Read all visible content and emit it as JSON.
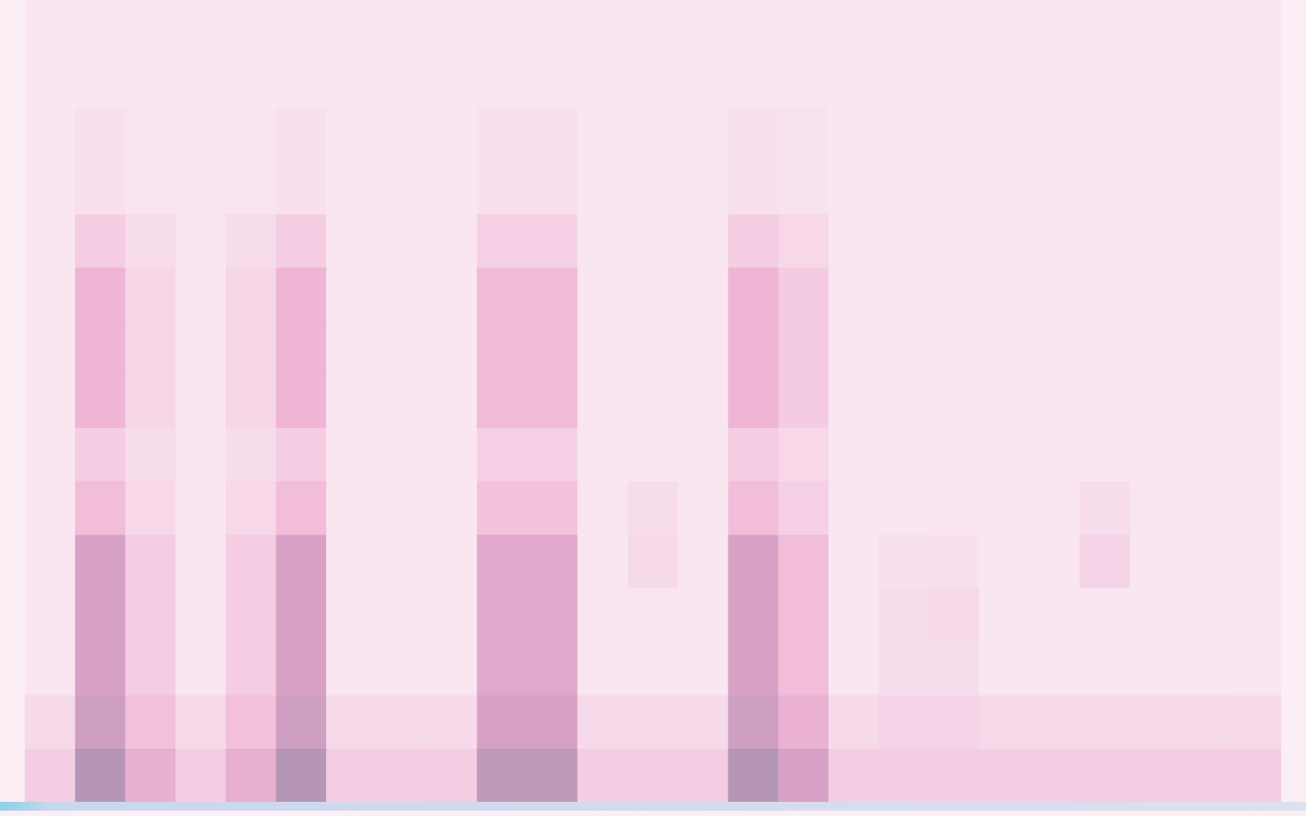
{
  "chart_data": {
    "type": "heatmap",
    "cells": [
      [
        3,
        8,
        5,
        3,
        5,
        8,
        3,
        3,
        3,
        7.5,
        7.5,
        3,
        3,
        3,
        8,
        6,
        3,
        3,
        3,
        3,
        3,
        3,
        3,
        3,
        3
      ],
      [
        2,
        6.5,
        3.8,
        2,
        3.8,
        6.5,
        2,
        2,
        2,
        6.1,
        6.1,
        2,
        2,
        2,
        6.5,
        4.7,
        2,
        2.5,
        2.5,
        2,
        2,
        2,
        2,
        2,
        2
      ],
      [
        1,
        6,
        3,
        1,
        3,
        6,
        1,
        1,
        1,
        5.5,
        5.5,
        1,
        1,
        1,
        6,
        4,
        1,
        1.8,
        1.8,
        1,
        1,
        1,
        1,
        1,
        1.2
      ],
      [
        1,
        6,
        3,
        1,
        3,
        6,
        1.2,
        1,
        1,
        5.5,
        5.5,
        1,
        1,
        1,
        6,
        4,
        1,
        1.8,
        2,
        1,
        1,
        1,
        1,
        1,
        1
      ],
      [
        1,
        6,
        3,
        1,
        3,
        6,
        1,
        1.2,
        1,
        5.5,
        5.5,
        1,
        2,
        1,
        6,
        4,
        1,
        1.5,
        1.5,
        1,
        1,
        2.5,
        1,
        1,
        1
      ],
      [
        1,
        4,
        2.2,
        1,
        2.2,
        4,
        1,
        1,
        1,
        3.7,
        3.7,
        1,
        1.8,
        1,
        4,
        2.8,
        1,
        1,
        1.2,
        1,
        1,
        1.8,
        1,
        1,
        1
      ],
      [
        1,
        3,
        1.8,
        1,
        1.8,
        3,
        1,
        1,
        1,
        2.8,
        2.8,
        1,
        1,
        1,
        3,
        2.2,
        1,
        1,
        1,
        1,
        1,
        1,
        1,
        1,
        1
      ],
      [
        1,
        4.5,
        2.4,
        1,
        2.4,
        4.5,
        1,
        1,
        1,
        4.1,
        4.1,
        1,
        1,
        1,
        4.5,
        3.1,
        1,
        1,
        1,
        1,
        1,
        1,
        1,
        1,
        1
      ],
      [
        1,
        4.5,
        2.4,
        1,
        2.4,
        4.5,
        1,
        1,
        1,
        4.1,
        4.1,
        1,
        1,
        1,
        4.5,
        3.1,
        1,
        1,
        1,
        1,
        1,
        1,
        1,
        1,
        1
      ],
      [
        1,
        4.5,
        2.4,
        1,
        2.4,
        4.5,
        1,
        1,
        1,
        4.1,
        4.1,
        1,
        1,
        1,
        4.5,
        3.1,
        1,
        1,
        1,
        1,
        1,
        1,
        1,
        1,
        1
      ],
      [
        1,
        3,
        1.8,
        1,
        1.8,
        3,
        1,
        1,
        1,
        2.8,
        2.8,
        1,
        1,
        1,
        3,
        2.2,
        1,
        1,
        1,
        1,
        1,
        1,
        1,
        1,
        1
      ],
      [
        1,
        1.5,
        1.2,
        1,
        1.2,
        1.5,
        1,
        1,
        1,
        1.5,
        1.5,
        1,
        1,
        1,
        1.5,
        1.3,
        1,
        1,
        1,
        1,
        1,
        1,
        1,
        1,
        1
      ],
      [
        1,
        1.5,
        1.2,
        1,
        1.2,
        1.5,
        1,
        1,
        1,
        1.5,
        1.5,
        1,
        1,
        1,
        1.5,
        1.3,
        1,
        1,
        1,
        1,
        1,
        1,
        1,
        1,
        1
      ],
      [
        1,
        1,
        1,
        1,
        1,
        1,
        1,
        1,
        1,
        1,
        1,
        1,
        1,
        1,
        1,
        1,
        1,
        1,
        1,
        1,
        1,
        1,
        1,
        1,
        1
      ],
      [
        1,
        1,
        1,
        1,
        1,
        1,
        1,
        1,
        1,
        1,
        1,
        1,
        1,
        1,
        1,
        1,
        1,
        1,
        1,
        1,
        1,
        1,
        1,
        1,
        1
      ]
    ],
    "color_range": [
      0,
      10
    ],
    "xlim": [
      0,
      25
    ],
    "ylim": [
      0,
      15
    ],
    "tick_labels": false,
    "grid": false
  }
}
